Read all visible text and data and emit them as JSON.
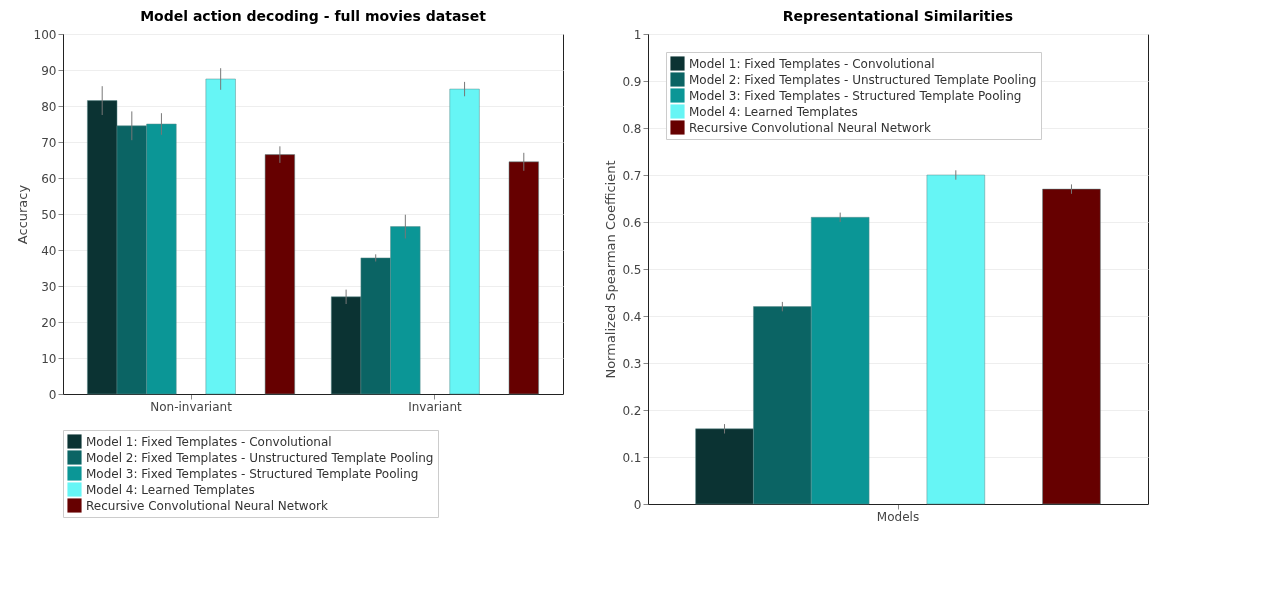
{
  "chart_data": [
    {
      "type": "bar",
      "title": "Model action decoding - full movies dataset",
      "ylabel": "Accuracy",
      "categories": [
        "Non-invariant",
        "Invariant"
      ],
      "ylim": [
        0,
        100
      ],
      "yticks": [
        0,
        10,
        20,
        30,
        40,
        50,
        60,
        70,
        80,
        90,
        100
      ],
      "grid": "y",
      "legend": "bottom",
      "series": [
        {
          "name": "Model 1: Fixed Templates - Convolutional",
          "color": "#0b3333",
          "values": [
            81.5,
            27
          ],
          "errors": [
            4,
            2
          ]
        },
        {
          "name": "Model 2: Fixed Templates - Unstructured Template Pooling",
          "color": "#0b6464",
          "values": [
            74.5,
            37.8
          ],
          "errors": [
            4,
            1
          ]
        },
        {
          "name": "Model 3: Fixed Templates - Structured Template Pooling",
          "color": "#0b9696",
          "values": [
            75,
            46.5
          ],
          "errors": [
            3,
            3.3
          ]
        },
        {
          "name": "Model 4: Learned Templates",
          "color": "#66f5f5",
          "values": [
            87.5,
            84.7
          ],
          "errors": [
            3,
            2
          ]
        },
        {
          "name": "Recursive Convolutional Neural Network",
          "color": "#660000",
          "values": [
            66.5,
            64.5
          ],
          "errors": [
            2.3,
            2.5
          ]
        }
      ]
    },
    {
      "type": "bar",
      "title": "Representational Similarities",
      "ylabel": "Normalized Spearman Coefficient",
      "categories": [
        "Models"
      ],
      "ylim": [
        0,
        1
      ],
      "yticks": [
        0,
        0.1,
        0.2,
        0.3,
        0.4,
        0.5,
        0.6,
        0.7,
        0.8,
        0.9,
        1
      ],
      "grid": "y",
      "legend": "top left",
      "series": [
        {
          "name": "Model 1: Fixed Templates - Convolutional",
          "color": "#0b3333",
          "values": [
            0.16
          ],
          "errors": [
            0.01
          ]
        },
        {
          "name": "Model 2: Fixed Templates - Unstructured Template Pooling",
          "color": "#0b6464",
          "values": [
            0.42
          ],
          "errors": [
            0.01
          ]
        },
        {
          "name": "Model 3: Fixed Templates - Structured Template Pooling",
          "color": "#0b9696",
          "values": [
            0.61
          ],
          "errors": [
            0.01
          ]
        },
        {
          "name": "Model 4: Learned Templates",
          "color": "#66f5f5",
          "values": [
            0.7
          ],
          "errors": [
            0.01
          ]
        },
        {
          "name": "Recursive Convolutional Neural Network",
          "color": "#660000",
          "values": [
            0.67
          ],
          "errors": [
            0.01
          ]
        }
      ]
    }
  ]
}
